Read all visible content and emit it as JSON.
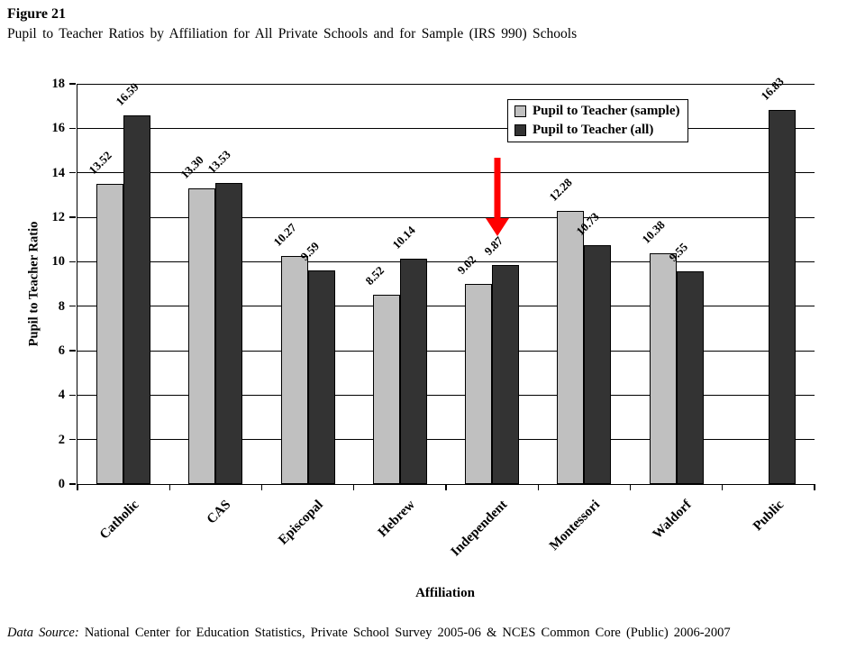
{
  "title": "Figure 21",
  "subtitle": "Pupil to Teacher Ratios by Affiliation  for All Private Schools and for Sample (IRS 990) Schools",
  "source": {
    "label": "Data Source:",
    "text": " National Center for Education Statistics, Private School Survey 2005-06 & NCES Common Core (Public) 2006-2007"
  },
  "chart_data": {
    "type": "bar",
    "categories": [
      "Catholic",
      "CAS",
      "Episcopal",
      "Hebrew",
      "Independent",
      "Montessori",
      "Waldorf",
      "Public"
    ],
    "series": [
      {
        "name": "Pupil to Teacher (sample)",
        "color": "#c0c0c0",
        "values": [
          13.52,
          13.3,
          10.27,
          8.52,
          9.02,
          12.28,
          10.38,
          null
        ]
      },
      {
        "name": "Pupil to Teacher (all)",
        "color": "#333333",
        "values": [
          16.59,
          13.53,
          9.59,
          10.14,
          9.87,
          10.73,
          9.55,
          16.83
        ]
      }
    ],
    "xlabel": "Affiliation",
    "ylabel": "Pupil to Teacher Ratio",
    "ylim": [
      0,
      18
    ],
    "yticks": [
      0,
      2,
      4,
      6,
      8,
      10,
      12,
      14,
      16,
      18
    ],
    "value_label_format": "2-decimals",
    "grid": true,
    "legend_position": "top-right-inside",
    "annotation": {
      "type": "arrow",
      "direction": "down",
      "color": "#ff0000",
      "target_category": "Independent",
      "target_series": "Pupil to Teacher (all)"
    }
  }
}
